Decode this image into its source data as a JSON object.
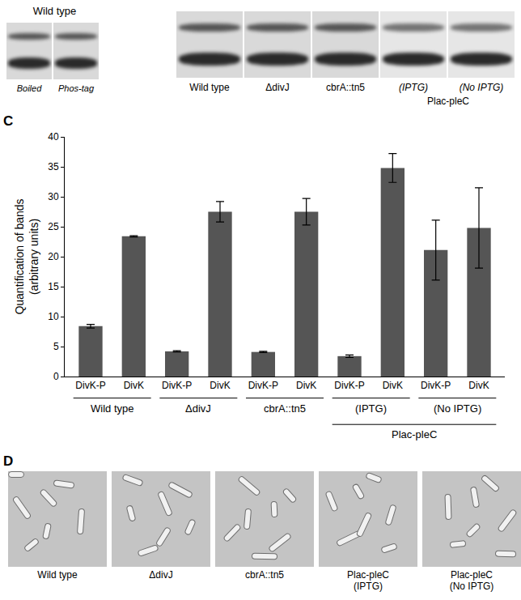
{
  "blots": {
    "left": {
      "title": "Wild type",
      "lanes": [
        "Boiled",
        "Phos-tag"
      ]
    },
    "right": {
      "lanes": [
        "Wild type",
        "ΔdivJ",
        "cbrA::tn5",
        "(IPTG)",
        "(No IPTG)"
      ],
      "group": {
        "label": "Plac-pleC",
        "lanes": [
          "(IPTG)",
          "(No IPTG)"
        ]
      }
    }
  },
  "chart_data": {
    "panel": "C",
    "type": "bar",
    "categories": [
      "DivK-P",
      "DivK",
      "DivK-P",
      "DivK",
      "DivK-P",
      "DivK",
      "DivK-P",
      "DivK",
      "DivK-P",
      "DivK"
    ],
    "values": [
      8.4,
      23.4,
      4.2,
      27.5,
      4.1,
      27.5,
      3.4,
      34.8,
      21.1,
      24.8
    ],
    "errors": [
      0.3,
      0.1,
      0.1,
      1.7,
      0.1,
      2.2,
      0.2,
      2.4,
      5.0,
      6.7
    ],
    "groups": [
      "Wild type",
      "ΔdivJ",
      "cbrA::tn5",
      "(IPTG)",
      "(No IPTG)"
    ],
    "supergroup": {
      "label": "Plac-pleC",
      "groups": [
        "(IPTG)",
        "(No IPTG)"
      ]
    },
    "ylabel": [
      "Quantification of bands",
      "(arbitrary units)"
    ],
    "ylim": [
      0,
      40
    ],
    "yticks": [
      0,
      5,
      10,
      15,
      20,
      25,
      30,
      35,
      40
    ],
    "color": "#555555",
    "grid": false
  },
  "micrographs": {
    "panel": "D",
    "images": [
      [
        "Wild type"
      ],
      [
        "ΔdivJ"
      ],
      [
        "cbrA::tn5"
      ],
      [
        "Plac-pleC",
        "(IPTG)"
      ],
      [
        "Plac-pleC",
        "(No IPTG)"
      ]
    ]
  }
}
